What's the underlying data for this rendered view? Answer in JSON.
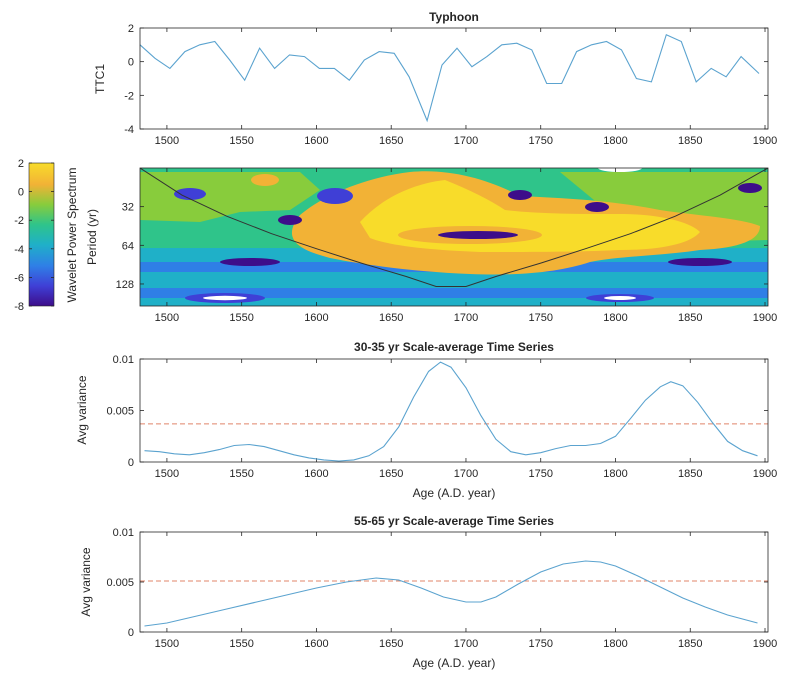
{
  "colors": {
    "series": "#5ba3cf",
    "threshold": "#e0856a",
    "colormap": [
      "#3d0d8a",
      "#3f3fd6",
      "#2f7fe6",
      "#1fb0c8",
      "#2fc48a",
      "#88cc3c",
      "#f2b236",
      "#f8dc2a"
    ]
  },
  "chart_data": [
    {
      "id": "ttc1",
      "type": "line",
      "title": "Typhoon",
      "xlabel": "",
      "ylabel": "TTC1",
      "xlim": [
        1482,
        1902
      ],
      "ylim": [
        -4,
        2
      ],
      "xticks": [
        1500,
        1550,
        1600,
        1650,
        1700,
        1750,
        1800,
        1850,
        1900
      ],
      "yticks": [
        -4,
        -2,
        0,
        2
      ],
      "x": [
        1482,
        1492,
        1502,
        1512,
        1522,
        1532,
        1542,
        1552,
        1562,
        1572,
        1582,
        1592,
        1602,
        1612,
        1622,
        1632,
        1642,
        1652,
        1662,
        1674,
        1684,
        1694,
        1704,
        1714,
        1724,
        1734,
        1744,
        1754,
        1764,
        1774,
        1784,
        1794,
        1804,
        1814,
        1824,
        1834,
        1844,
        1854,
        1864,
        1874,
        1884,
        1896
      ],
      "y": [
        1.0,
        0.2,
        -0.4,
        0.6,
        1.0,
        1.2,
        0.1,
        -1.1,
        0.8,
        -0.4,
        0.4,
        0.3,
        -0.4,
        -0.4,
        -1.1,
        0.1,
        0.6,
        0.5,
        -0.9,
        -3.5,
        -0.2,
        0.8,
        -0.3,
        0.3,
        1.0,
        1.1,
        0.7,
        -1.3,
        -1.3,
        0.6,
        1.0,
        1.2,
        0.7,
        -1.0,
        -1.2,
        1.6,
        1.2,
        -1.2,
        -0.4,
        -0.9,
        0.3,
        -0.7
      ]
    },
    {
      "id": "wavelet",
      "type": "heatmap",
      "title": "",
      "xlabel": "",
      "ylabel": "Period (yr)",
      "colorbar_label": "Wavelet Power Spectrum",
      "colorbar_ticks": [
        2,
        0,
        -2,
        -4,
        -6,
        -8
      ],
      "clim": [
        -8,
        2
      ],
      "xlim": [
        1482,
        1902
      ],
      "ylim": [
        16,
        190
      ],
      "xticks": [
        1500,
        1550,
        1600,
        1650,
        1700,
        1750,
        1800,
        1850,
        1900
      ],
      "yticks": [
        32,
        64,
        128
      ],
      "cone_of_influence": {
        "x": [
          1482,
          1510,
          1540,
          1570,
          1600,
          1630,
          1660,
          1680,
          1700,
          1720,
          1750,
          1780,
          1810,
          1840,
          1870,
          1902
        ],
        "period": [
          16,
          26,
          38,
          52,
          68,
          88,
          112,
          134,
          134,
          112,
          88,
          68,
          52,
          38,
          26,
          16
        ]
      }
    },
    {
      "id": "scale30",
      "type": "line",
      "title": "30-35 yr Scale-average Time Series",
      "xlabel": "Age (A.D. year)",
      "ylabel": "Avg variance",
      "xlim": [
        1482,
        1902
      ],
      "ylim": [
        0,
        0.01
      ],
      "xticks": [
        1500,
        1550,
        1600,
        1650,
        1700,
        1750,
        1800,
        1850,
        1900
      ],
      "yticks": [
        0,
        0.005,
        0.01
      ],
      "threshold": 0.0037,
      "x": [
        1485,
        1495,
        1505,
        1515,
        1525,
        1535,
        1545,
        1555,
        1565,
        1575,
        1585,
        1595,
        1605,
        1615,
        1625,
        1635,
        1645,
        1655,
        1665,
        1675,
        1683,
        1690,
        1700,
        1710,
        1720,
        1730,
        1740,
        1750,
        1760,
        1770,
        1780,
        1790,
        1800,
        1810,
        1820,
        1830,
        1837,
        1845,
        1855,
        1865,
        1875,
        1885,
        1895
      ],
      "y": [
        0.0011,
        0.001,
        0.0008,
        0.0007,
        0.0009,
        0.0012,
        0.0016,
        0.0017,
        0.0015,
        0.0011,
        0.0007,
        0.0004,
        0.0002,
        0.0001,
        0.0002,
        0.0006,
        0.0015,
        0.0034,
        0.0063,
        0.0088,
        0.0097,
        0.0092,
        0.0072,
        0.0045,
        0.0022,
        0.001,
        0.0007,
        0.0009,
        0.0013,
        0.0016,
        0.0016,
        0.0018,
        0.0025,
        0.0042,
        0.006,
        0.0073,
        0.0078,
        0.0074,
        0.0058,
        0.0038,
        0.002,
        0.0011,
        0.0006
      ]
    },
    {
      "id": "scale55",
      "type": "line",
      "title": "55-65 yr Scale-average Time Series",
      "xlabel": "Age (A.D. year)",
      "ylabel": "Avg variance",
      "xlim": [
        1482,
        1902
      ],
      "ylim": [
        0,
        0.01
      ],
      "xticks": [
        1500,
        1550,
        1600,
        1650,
        1700,
        1750,
        1800,
        1850,
        1900
      ],
      "yticks": [
        0,
        0.005,
        0.01
      ],
      "threshold": 0.0051,
      "x": [
        1485,
        1500,
        1520,
        1540,
        1560,
        1580,
        1600,
        1620,
        1640,
        1655,
        1670,
        1685,
        1700,
        1710,
        1720,
        1735,
        1750,
        1765,
        1780,
        1790,
        1800,
        1815,
        1830,
        1845,
        1860,
        1875,
        1895
      ],
      "y": [
        0.0006,
        0.0009,
        0.0016,
        0.0023,
        0.003,
        0.0037,
        0.0044,
        0.005,
        0.0054,
        0.0052,
        0.0044,
        0.0035,
        0.003,
        0.003,
        0.0035,
        0.0048,
        0.006,
        0.0068,
        0.0071,
        0.007,
        0.0066,
        0.0056,
        0.0045,
        0.0034,
        0.0025,
        0.0017,
        0.0009
      ]
    }
  ]
}
